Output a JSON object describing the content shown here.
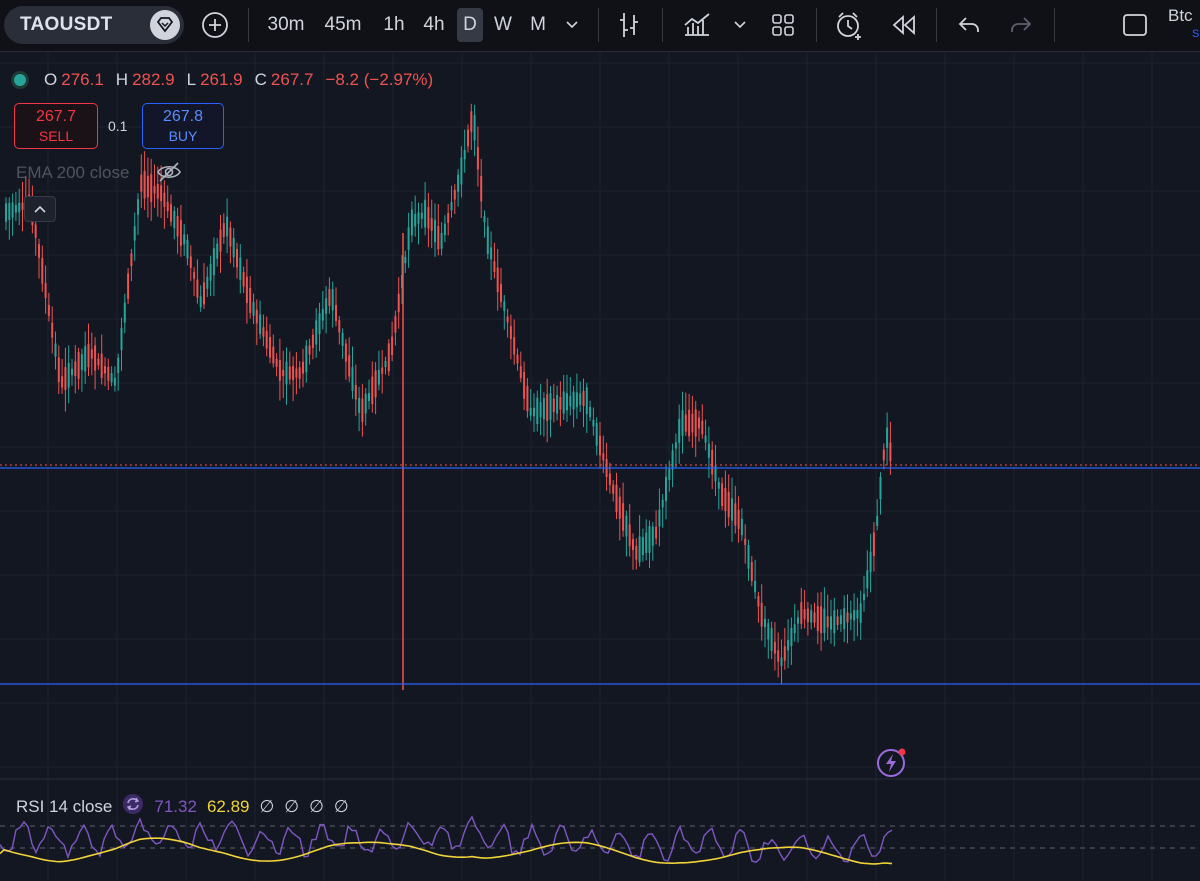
{
  "toolbar": {
    "symbol": "TAOUSDT",
    "timeframes": [
      "30m",
      "45m",
      "1h",
      "4h",
      "D",
      "W",
      "M"
    ],
    "active_timeframe": "D",
    "account_label": "Btc",
    "account_sub": "S"
  },
  "legend": {
    "o_key": "O",
    "o_val": "276.1",
    "h_key": "H",
    "h_val": "282.9",
    "l_key": "L",
    "l_val": "261.9",
    "c_key": "C",
    "c_val": "267.7",
    "change": "−8.2 (−2.97%)"
  },
  "trade": {
    "sell_price": "267.7",
    "sell_label": "SELL",
    "quantity": "0.1",
    "buy_price": "267.8",
    "buy_label": "BUY"
  },
  "indicator": {
    "ema_label": "EMA 200 close"
  },
  "rsi": {
    "label": "RSI 14 close",
    "value1": "71.32",
    "value2": "62.89",
    "null_values": [
      "∅",
      "∅",
      "∅",
      "∅"
    ]
  },
  "colors": {
    "up": "#26a69a",
    "down": "#ef5350",
    "horizontal_line": "#2962ff",
    "rsi": "#7e57c2",
    "rsi_ma": "#f0d43a",
    "background": "#131722"
  },
  "icons": [
    "plus-circle-icon",
    "bar-type-icon",
    "indicators-icon",
    "layout-icon",
    "alert-icon",
    "replay-icon",
    "undo-icon",
    "redo-icon",
    "fullscreen-icon",
    "eye-off-icon",
    "chevron-up-icon",
    "flash-icon"
  ]
}
